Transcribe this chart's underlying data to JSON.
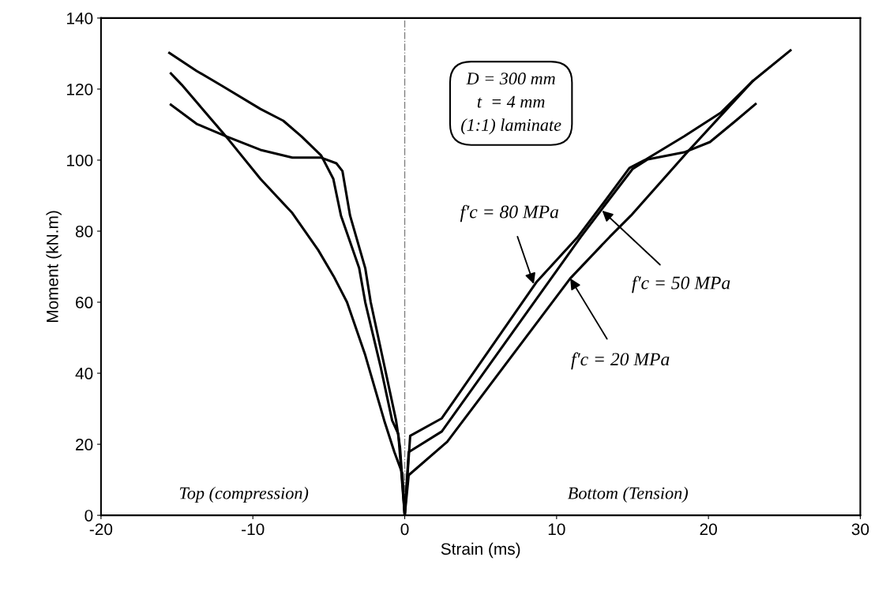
{
  "chart_data": {
    "type": "line",
    "xlabel": "Strain (ms)",
    "ylabel": "Moment (kN.m)",
    "xlim": [
      -20,
      30
    ],
    "xticks": [
      -20,
      -10,
      0,
      10,
      20,
      30
    ],
    "ylim": [
      0,
      140
    ],
    "yticks": [
      0,
      20,
      40,
      60,
      80,
      100,
      120,
      140
    ],
    "grid": false,
    "legend": false,
    "marker": "none",
    "line_style": "solid",
    "series": [
      {
        "color": "#000000",
        "x": [
          -15.5,
          -13.7,
          -12.1,
          -9.5,
          -8.0,
          -6.8,
          -5.5,
          -4.7,
          -4.2,
          -3.0,
          -2.6,
          -1.56,
          -0.83,
          -0.42,
          0,
          0.36,
          2.44,
          8.7,
          11.4,
          13.1,
          14.8,
          15.8,
          18.4,
          20.8,
          22.9,
          25.4
        ],
        "values": [
          130.2,
          125.1,
          121.1,
          114.4,
          111.1,
          106.7,
          101.3,
          94.7,
          84.4,
          69.6,
          60,
          41.3,
          26.7,
          22.9,
          0,
          22.4,
          27.3,
          65.8,
          78.4,
          88,
          97.8,
          100,
          106.7,
          113.3,
          122.2,
          130.9
        ]
      },
      {
        "color": "#000000",
        "x": [
          -15.4,
          -13.7,
          -11.75,
          -9.5,
          -7.4,
          -5.5,
          -4.5,
          -4.1,
          -3.6,
          -2.6,
          -2.24,
          -1.3,
          -0.57,
          -0.31,
          0,
          0.26,
          2.44,
          11.6,
          13.3,
          15.0,
          16.0,
          18.4,
          20.1,
          21.8,
          23.1
        ],
        "values": [
          115.6,
          110.2,
          106.7,
          102.9,
          100.7,
          100.7,
          99.1,
          96.9,
          84.4,
          69.6,
          60,
          41.3,
          26.7,
          19.1,
          0,
          17.8,
          23.6,
          78.4,
          88,
          97.5,
          100.2,
          102.2,
          105.1,
          111.1,
          115.8
        ]
      },
      {
        "color": "#000000",
        "x": [
          -15.4,
          -14.7,
          -11.6,
          -9.5,
          -7.4,
          -5.7,
          -4.68,
          -3.8,
          -2.6,
          -1.35,
          -0.68,
          -0.16,
          0,
          0.26,
          2.8,
          10.9,
          13.5,
          14.9,
          18.6,
          22.9
        ],
        "values": [
          124.4,
          121.3,
          105.8,
          94.7,
          85.1,
          74.7,
          67.3,
          60,
          45.1,
          26.7,
          17.8,
          11.8,
          0,
          11.3,
          20.7,
          66.7,
          78.4,
          84.4,
          102.2,
          122.2
        ]
      }
    ],
    "ref_lines": [
      {
        "axis": "x",
        "value": 0,
        "color": "#808080",
        "line_style": "dashdot"
      }
    ],
    "annotations": [
      {
        "text": "f′c = 80 MPa",
        "x": 8.5,
        "y": 65.1
      },
      {
        "text": "f′c = 50 MPa",
        "x": 13.0,
        "y": 85.8
      },
      {
        "text": "f′c = 20 MPa",
        "x": 10.9,
        "y": 66.7
      },
      "D = 300 mm\nt  = 4 mm\n(1:1) laminate",
      "Top (compression)",
      "Bottom (Tension)"
    ]
  }
}
